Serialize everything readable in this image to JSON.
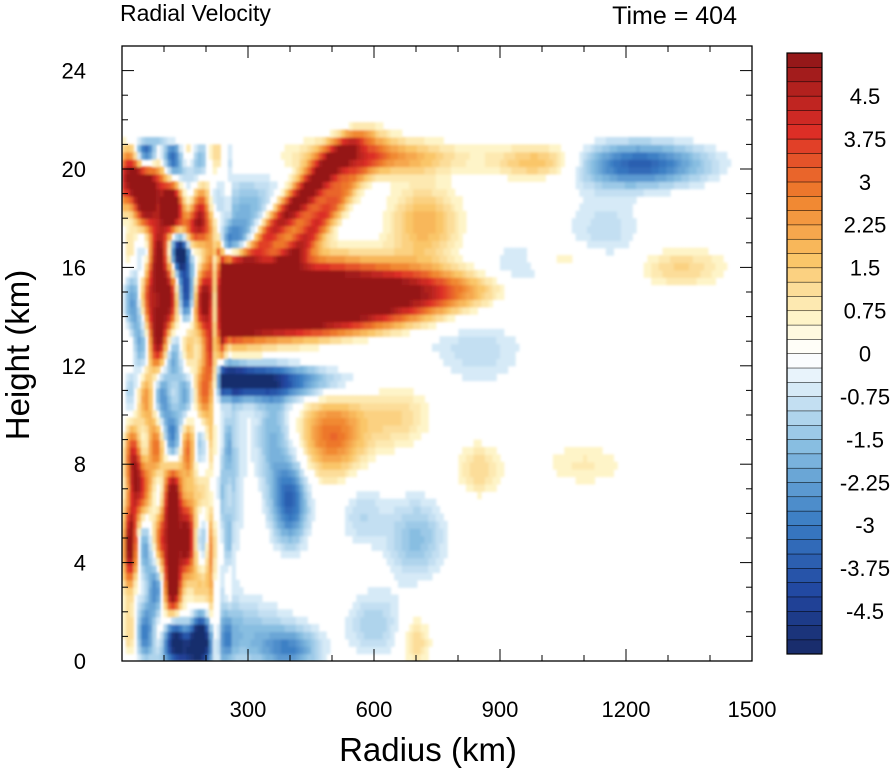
{
  "chart_data": {
    "type": "heatmap",
    "title_left": "Radial Velocity",
    "title_right": "Time = 404",
    "xlabel": "Radius (km)",
    "ylabel": "Height (km)",
    "xlim": [
      0,
      1500
    ],
    "ylim": [
      0,
      25
    ],
    "x_ticks": [
      300,
      600,
      900,
      1200,
      1500
    ],
    "y_ticks": [
      0,
      4,
      8,
      12,
      16,
      20,
      24
    ],
    "colorbar": {
      "levels_min": -5.25,
      "levels_max": 5.25,
      "step": 0.25,
      "tick_labels": [
        "4.5",
        "3.75",
        "3",
        "2.25",
        "1.5",
        "0.75",
        "0",
        "-0.75",
        "-1.5",
        "-2.25",
        "-3",
        "-3.75",
        "-4.5"
      ],
      "tick_values": [
        4.5,
        3.75,
        3,
        2.25,
        1.5,
        0.75,
        0,
        -0.75,
        -1.5,
        -2.25,
        -3,
        -3.75,
        -4.5
      ]
    },
    "field_features": [
      {
        "r": 300,
        "z": 14.5,
        "v": 6.0
      },
      {
        "r": 550,
        "z": 14.8,
        "v": 5.5
      },
      {
        "r": 750,
        "z": 14.9,
        "v": 4.5
      },
      {
        "r": 860,
        "z": 15.1,
        "v": 2.5
      },
      {
        "r": 420,
        "z": 17.4,
        "v": 4.0
      },
      {
        "r": 560,
        "z": 19.6,
        "v": 3.2
      },
      {
        "r": 40,
        "z": 19.5,
        "v": 5.0
      },
      {
        "r": 90,
        "z": 14.0,
        "v": 5.5
      },
      {
        "r": 110,
        "z": 5.5,
        "v": 5.0
      },
      {
        "r": 30,
        "z": 7.5,
        "v": 3.0
      },
      {
        "r": 30,
        "z": 4.0,
        "v": 3.0
      },
      {
        "r": 500,
        "z": 9.0,
        "v": 2.0
      },
      {
        "r": 350,
        "z": 11.3,
        "v": -5.5
      },
      {
        "r": 140,
        "z": 11.0,
        "v": -4.0
      },
      {
        "r": 160,
        "z": 0.6,
        "v": -5.0
      },
      {
        "r": 50,
        "z": 20.6,
        "v": -3.5
      },
      {
        "r": 1230,
        "z": 20.3,
        "v": -3.0
      },
      {
        "r": 400,
        "z": 6.5,
        "v": -2.5
      },
      {
        "r": 1000,
        "z": 20.3,
        "v": 1.5
      },
      {
        "r": 1330,
        "z": 16.0,
        "v": 1.2
      }
    ]
  }
}
